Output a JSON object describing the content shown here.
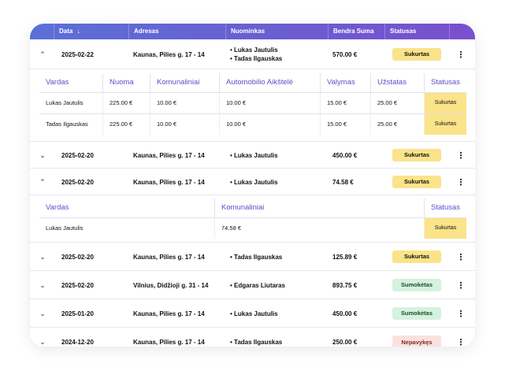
{
  "header": {
    "date": "Data",
    "sort_icon": "↓",
    "address": "Adresas",
    "tenant": "Nuominkas",
    "total": "Bendra Suma",
    "status": "Statusas"
  },
  "rows": [
    {
      "date": "2025-02-22",
      "address": "Kaunas, Pilies g. 17 - 14",
      "tenants": [
        "Lukas Jautulis",
        "Tadas Ilgauskas"
      ],
      "total": "570.00",
      "currency": "€",
      "status": "Sukurtas",
      "expanded": true
    },
    {
      "date": "2025-02-20",
      "address": "Kaunas, Pilies g. 17 - 14",
      "tenants": [
        "Lukas Jautulis"
      ],
      "total": "450.00",
      "currency": "€",
      "status": "Sukurtas",
      "expanded": false
    },
    {
      "date": "2025-02-20",
      "address": "Kaunas, Pilies g. 17 - 14",
      "tenants": [
        "Lukas Jautulis"
      ],
      "total": "74.58",
      "currency": "€",
      "status": "Sukurtas",
      "expanded": true
    },
    {
      "date": "2025-02-20",
      "address": "Kaunas, Pilies g. 17 - 14",
      "tenants": [
        "Tadas Ilgauskas"
      ],
      "total": "125.89",
      "currency": "€",
      "status": "Sukurtas",
      "expanded": false
    },
    {
      "date": "2025-02-20",
      "address": "Vilnius, Didžioji g. 31 - 14",
      "tenants": [
        "Edgaras Liutaras"
      ],
      "total": "893.75",
      "currency": "€",
      "status": "Sumokėtas",
      "expanded": false
    },
    {
      "date": "2025-01-20",
      "address": "Kaunas, Pilies g. 17 - 14",
      "tenants": [
        "Lukas Jautulis"
      ],
      "total": "450.00",
      "currency": "€",
      "status": "Sumokėtas",
      "expanded": false
    },
    {
      "date": "2024-12-20",
      "address": "Kaunas, Pilies g. 17 - 14",
      "tenants": [
        "Tadas Ilgauskas"
      ],
      "total": "250.00",
      "currency": "€",
      "status": "Nepavykęs",
      "expanded": false
    }
  ],
  "detail1": {
    "headers": [
      "Vardas",
      "Nuoma",
      "Komunaliniai",
      "Automobilio Aikštelė",
      "Valymas",
      "Užstatas",
      "Statusas"
    ],
    "rows": [
      [
        "Lukas Jautulis",
        "225.00  €",
        "10.00 €",
        "10.00 €",
        "15.00 €",
        "25.00 €",
        "Sukurtas"
      ],
      [
        "Tadas Ilgauskas",
        "225.00  €",
        "10.00 €",
        "10.00 €",
        "15.00 €",
        "25.00 €",
        "Sukurtas"
      ]
    ]
  },
  "detail2": {
    "headers": [
      "Vardas",
      "Komunaliniai",
      "Statusas"
    ],
    "rows": [
      [
        "Lukas Jautulis",
        "74.58  €",
        "Sukurtas"
      ]
    ]
  },
  "icons": {
    "expanded": "chevron-up-icon",
    "collapsed": "chevron-down-icon",
    "more": "more-vertical-icon"
  },
  "colors": {
    "header_gradient_start": "#5b6fd8",
    "header_gradient_end": "#7a4fcf",
    "sukurtas": "#fbe38a",
    "sumoketas": "#d3f3df",
    "nepavykes": "#fbe1dc",
    "subheader_text": "#5a4fc8"
  }
}
